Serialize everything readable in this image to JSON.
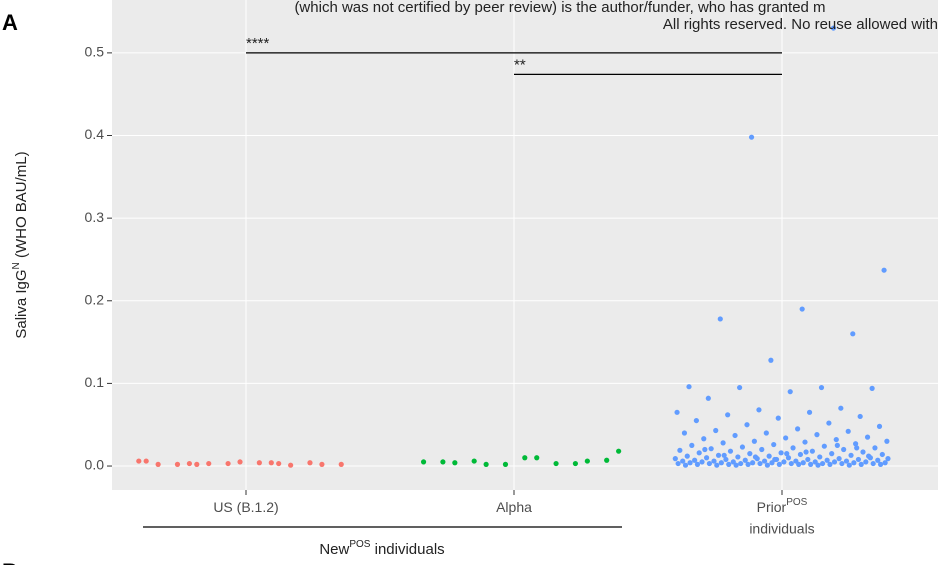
{
  "panel_labels": [
    "A",
    "B"
  ],
  "header_lines": [
    "(which was not certified by peer review) is the author/funder, who has granted m",
    "All rights reserved. No reuse allowed with"
  ],
  "chart_data": {
    "type": "strip",
    "ylabel": {
      "main": "Saliva IgG",
      "sup": "N",
      "rest": " (WHO BAU/mL)"
    },
    "categories": [
      "US (B.1.2)",
      "Alpha",
      "Prior"
    ],
    "category_sup": [
      null,
      null,
      "POS"
    ],
    "category_line2": [
      null,
      null,
      "individuals"
    ],
    "group_label": {
      "text": "New",
      "sup": "POS",
      "rest": " individuals",
      "categories": [
        "US (B.1.2)",
        "Alpha"
      ]
    },
    "series": [
      {
        "name": "US (B.1.2)",
        "color": "#f8766d",
        "values": [
          0.006,
          0.004,
          0.003,
          0.002,
          0.005,
          0.002,
          0.001,
          0.003,
          0.002,
          0.004,
          0.002,
          0.004,
          0.003,
          0.006,
          0.003,
          0.002
        ]
      },
      {
        "name": "Alpha",
        "color": "#00ba38",
        "values": [
          0.002,
          0.018,
          0.01,
          0.004,
          0.006,
          0.002,
          0.005,
          0.003,
          0.006,
          0.007,
          0.01,
          0.005,
          0.003
        ]
      },
      {
        "name": "Prior",
        "color": "#619cff",
        "values": [
          0.53,
          0.398,
          0.237,
          0.19,
          0.178,
          0.16,
          0.128,
          0.096,
          0.095,
          0.095,
          0.094,
          0.09,
          0.082,
          0.07,
          0.068,
          0.065,
          0.065,
          0.062,
          0.06,
          0.058,
          0.055,
          0.052,
          0.05,
          0.048,
          0.045,
          0.043,
          0.042,
          0.04,
          0.04,
          0.038,
          0.037,
          0.035,
          0.034,
          0.033,
          0.032,
          0.03,
          0.03,
          0.029,
          0.028,
          0.027,
          0.026,
          0.025,
          0.024,
          0.023,
          0.022,
          0.022,
          0.021,
          0.02,
          0.02,
          0.019,
          0.018,
          0.018,
          0.017,
          0.016,
          0.016,
          0.015,
          0.015,
          0.014,
          0.014,
          0.013,
          0.013,
          0.012,
          0.012,
          0.011,
          0.011,
          0.01,
          0.01,
          0.01,
          0.009,
          0.009,
          0.009,
          0.008,
          0.008,
          0.008,
          0.008,
          0.007,
          0.007,
          0.007,
          0.007,
          0.006,
          0.006,
          0.006,
          0.006,
          0.006,
          0.005,
          0.005,
          0.005,
          0.005,
          0.005,
          0.005,
          0.004,
          0.004,
          0.004,
          0.004,
          0.004,
          0.004,
          0.004,
          0.003,
          0.003,
          0.003,
          0.003,
          0.003,
          0.003,
          0.003,
          0.003,
          0.002,
          0.002,
          0.002,
          0.002,
          0.002,
          0.002,
          0.002,
          0.002,
          0.002,
          0.001,
          0.001,
          0.001,
          0.001,
          0.001,
          0.001,
          0.012,
          0.015,
          0.02,
          0.025,
          0.011,
          0.009,
          0.017,
          0.013,
          0.022,
          0.008
        ]
      }
    ],
    "comparisons": [
      {
        "from": "US (B.1.2)",
        "to": "Prior",
        "y": 0.5,
        "label": "****"
      },
      {
        "from": "Alpha",
        "to": "Prior",
        "y": 0.474,
        "label": "**"
      }
    ],
    "ylim": [
      -0.029,
      0.564
    ],
    "yticks": [
      {
        "value": 0,
        "label": "0.0"
      },
      0.1,
      0.2,
      0.3,
      0.4,
      0.5
    ],
    "grid": true
  }
}
